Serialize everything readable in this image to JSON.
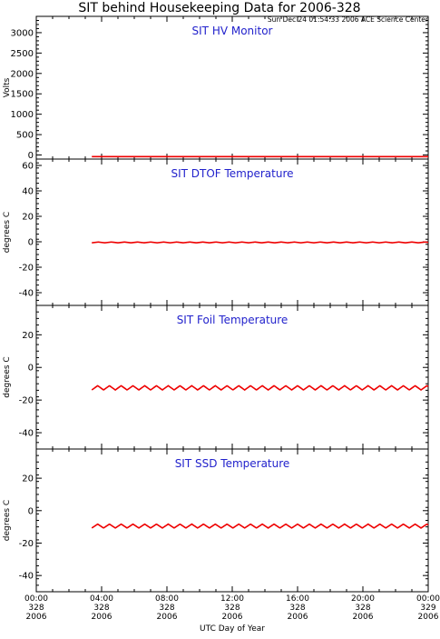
{
  "header": {
    "title": "SIT behind Housekeeping Data for 2006-328",
    "timestamp": "Sun Dec 24 01:54:33 2006 ACE Science Center"
  },
  "colors": {
    "panel_title": "#2222cc",
    "series": "#ee0000",
    "axis": "#000000"
  },
  "x_axis": {
    "label": "UTC Day of Year",
    "ticks": [
      {
        "time": "00:00",
        "doy": "328",
        "year": "2006"
      },
      {
        "time": "04:00",
        "doy": "328",
        "year": "2006"
      },
      {
        "time": "08:00",
        "doy": "328",
        "year": "2006"
      },
      {
        "time": "12:00",
        "doy": "328",
        "year": "2006"
      },
      {
        "time": "16:00",
        "doy": "328",
        "year": "2006"
      },
      {
        "time": "20:00",
        "doy": "328",
        "year": "2006"
      },
      {
        "time": "00:00",
        "doy": "329",
        "year": "2006"
      }
    ]
  },
  "chart_data": [
    {
      "type": "line",
      "title": "SIT HV Monitor",
      "ylabel": "Volts",
      "xlim": [
        0,
        24
      ],
      "ylim": [
        -100,
        3400
      ],
      "yticks": [
        0,
        500,
        1000,
        1500,
        2000,
        2500,
        3000
      ],
      "grid": false,
      "series": [
        {
          "x_start": 3.4,
          "x_end": 24,
          "y_mean": -40,
          "oscillation_amplitude": 0,
          "oscillation_period_hours": 0
        }
      ]
    },
    {
      "type": "line",
      "title": "SIT DTOF Temperature",
      "ylabel": "degrees C",
      "xlim": [
        0,
        24
      ],
      "ylim": [
        -50,
        65
      ],
      "yticks": [
        -40,
        -20,
        0,
        20,
        40,
        60
      ],
      "grid": false,
      "series": [
        {
          "x_start": 3.4,
          "x_end": 24,
          "y_mean": -0.5,
          "oscillation_amplitude": 0.3,
          "oscillation_period_hours": 0.8
        }
      ]
    },
    {
      "type": "line",
      "title": "SIT Foil Temperature",
      "ylabel": "degrees C",
      "xlim": [
        0,
        24
      ],
      "ylim": [
        -50,
        38
      ],
      "yticks": [
        -40,
        -20,
        0,
        20
      ],
      "grid": false,
      "series": [
        {
          "x_start": 3.4,
          "x_end": 24,
          "y_mean": -12.5,
          "oscillation_amplitude": 1.3,
          "oscillation_period_hours": 0.72
        }
      ]
    },
    {
      "type": "line",
      "title": "SIT SSD Temperature",
      "ylabel": "degrees C",
      "xlim": [
        0,
        24
      ],
      "ylim": [
        -50,
        38
      ],
      "yticks": [
        -40,
        -20,
        0,
        20
      ],
      "grid": false,
      "series": [
        {
          "x_start": 3.4,
          "x_end": 24,
          "y_mean": -9.5,
          "oscillation_amplitude": 1.2,
          "oscillation_period_hours": 0.72
        }
      ]
    }
  ]
}
